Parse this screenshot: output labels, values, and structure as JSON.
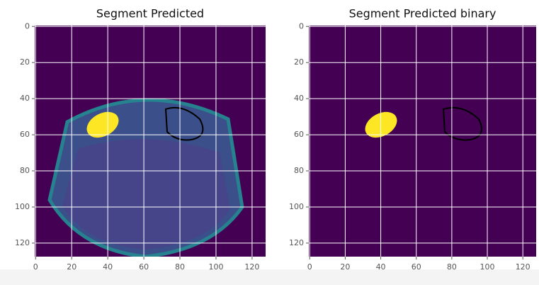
{
  "chart_data": [
    {
      "type": "image",
      "title": "Segment Predicted",
      "xlim": [
        -0.5,
        127.5
      ],
      "ylim": [
        127.5,
        -0.5
      ],
      "xticks": [
        0,
        20,
        40,
        60,
        80,
        100,
        120
      ],
      "yticks": [
        0,
        20,
        40,
        60,
        80,
        100,
        120
      ],
      "grid": true
    },
    {
      "type": "image",
      "title": "Segment Predicted binary",
      "xlim": [
        -0.5,
        127.5
      ],
      "ylim": [
        127.5,
        -0.5
      ],
      "xticks": [
        0,
        20,
        40,
        60,
        80,
        100,
        120
      ],
      "yticks": [
        0,
        20,
        40,
        60,
        80,
        100,
        120
      ],
      "grid": true
    }
  ]
}
